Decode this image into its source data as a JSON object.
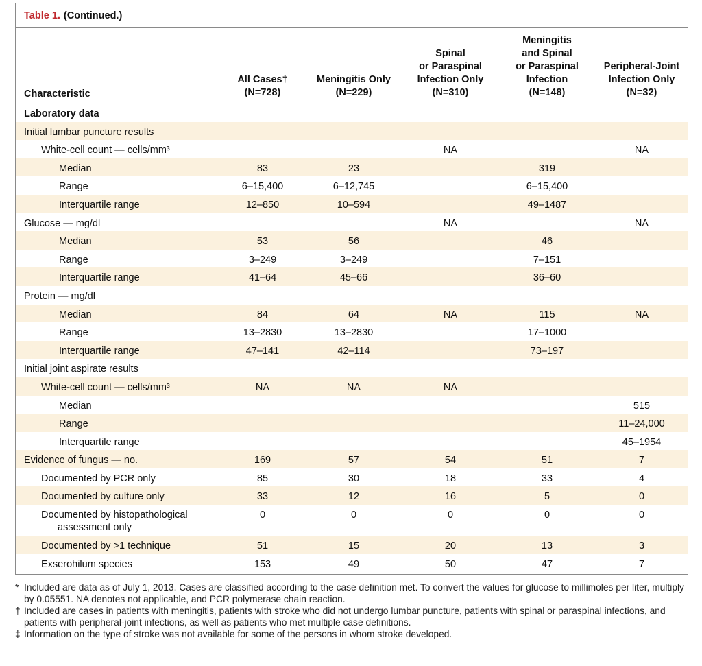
{
  "table": {
    "label": "Table 1.",
    "continued": "(Continued.)",
    "headers": {
      "characteristic": "Characteristic",
      "columns": [
        {
          "lines": [
            "All Cases†",
            "(N=728)"
          ]
        },
        {
          "lines": [
            "Meningitis Only",
            "(N=229)"
          ]
        },
        {
          "lines": [
            "Spinal",
            "or Paraspinal",
            "Infection Only",
            "(N=310)"
          ]
        },
        {
          "lines": [
            "Meningitis",
            "and Spinal",
            "or Paraspinal",
            "Infection",
            "(N=148)"
          ]
        },
        {
          "lines": [
            "Peripheral-Joint",
            "Infection Only",
            "(N=32)"
          ]
        }
      ]
    },
    "rows": [
      {
        "label": "Laboratory data",
        "level": 0,
        "bold": true,
        "values": [
          "",
          "",
          "",
          "",
          ""
        ]
      },
      {
        "label": "Initial lumbar puncture results",
        "level": 0,
        "values": [
          "",
          "",
          "",
          "",
          ""
        ]
      },
      {
        "label": "White-cell count — cells/mm³",
        "level": 1,
        "values": [
          "",
          "",
          "NA",
          "",
          "NA"
        ]
      },
      {
        "label": "Median",
        "level": 2,
        "values": [
          "83",
          "23",
          "",
          "319",
          ""
        ]
      },
      {
        "label": "Range",
        "level": 2,
        "values": [
          "6–15,400",
          "6–12,745",
          "",
          "6–15,400",
          ""
        ]
      },
      {
        "label": "Interquartile range",
        "level": 2,
        "values": [
          "12–850",
          "10–594",
          "",
          "49–1487",
          ""
        ]
      },
      {
        "label": "Glucose — mg/dl",
        "level": 0,
        "values": [
          "",
          "",
          "NA",
          "",
          "NA"
        ]
      },
      {
        "label": "Median",
        "level": 2,
        "values": [
          "53",
          "56",
          "",
          "46",
          ""
        ]
      },
      {
        "label": "Range",
        "level": 2,
        "values": [
          "3–249",
          "3–249",
          "",
          "7–151",
          ""
        ]
      },
      {
        "label": "Interquartile range",
        "level": 2,
        "values": [
          "41–64",
          "45–66",
          "",
          "36–60",
          ""
        ]
      },
      {
        "label": "Protein — mg/dl",
        "level": 0,
        "values": [
          "",
          "",
          "",
          "",
          ""
        ]
      },
      {
        "label": "Median",
        "level": 2,
        "values": [
          "84",
          "64",
          "NA",
          "115",
          "NA"
        ]
      },
      {
        "label": "Range",
        "level": 2,
        "values": [
          "13–2830",
          "13–2830",
          "",
          "17–1000",
          ""
        ]
      },
      {
        "label": "Interquartile range",
        "level": 2,
        "values": [
          "47–141",
          "42–114",
          "",
          "73–197",
          ""
        ]
      },
      {
        "label": "Initial joint aspirate results",
        "level": 0,
        "values": [
          "",
          "",
          "",
          "",
          ""
        ]
      },
      {
        "label": "White-cell count — cells/mm³",
        "level": 1,
        "values": [
          "NA",
          "NA",
          "NA",
          "",
          ""
        ]
      },
      {
        "label": "Median",
        "level": 2,
        "values": [
          "",
          "",
          "",
          "",
          "515"
        ]
      },
      {
        "label": "Range",
        "level": 2,
        "values": [
          "",
          "",
          "",
          "",
          "11–24,000"
        ]
      },
      {
        "label": "Interquartile range",
        "level": 2,
        "values": [
          "",
          "",
          "",
          "",
          "45–1954"
        ]
      },
      {
        "label": "Evidence of fungus — no.",
        "level": 0,
        "values": [
          "169",
          "57",
          "54",
          "51",
          "7"
        ]
      },
      {
        "label": "Documented by PCR only",
        "level": 1,
        "values": [
          "85",
          "30",
          "18",
          "33",
          "4"
        ]
      },
      {
        "label": "Documented by culture only",
        "level": 1,
        "values": [
          "33",
          "12",
          "16",
          "5",
          "0"
        ]
      },
      {
        "label": "Documented by histopathological",
        "label2": "assessment only",
        "level": 1,
        "values": [
          "0",
          "0",
          "0",
          "0",
          "0"
        ]
      },
      {
        "label": "Documented by >1 technique",
        "level": 1,
        "values": [
          "51",
          "15",
          "20",
          "13",
          "3"
        ]
      },
      {
        "label": "Exserohilum species",
        "level": 1,
        "values": [
          "153",
          "49",
          "50",
          "47",
          "7"
        ]
      }
    ]
  },
  "footnotes": [
    {
      "mark": "*",
      "text": "Included are data as of July 1, 2013. Cases are classified according to the case definition met. To convert the values for glucose to millimoles per liter, multiply by 0.05551. NA denotes not applicable, and PCR polymerase chain reaction."
    },
    {
      "mark": "†",
      "text": "Included are cases in patients with meningitis, patients with stroke who did not undergo lumbar puncture, patients with spinal or paraspinal infections, and patients with peripheral-joint infections, as well as patients who met multiple case definitions."
    },
    {
      "mark": "‡",
      "text": "Information on the type of stroke was not available for some of the persons in whom stroke developed."
    }
  ],
  "colors": {
    "title_red": "#c0282d",
    "shade": "#fbf1de",
    "rule": "#8a8a8a"
  }
}
